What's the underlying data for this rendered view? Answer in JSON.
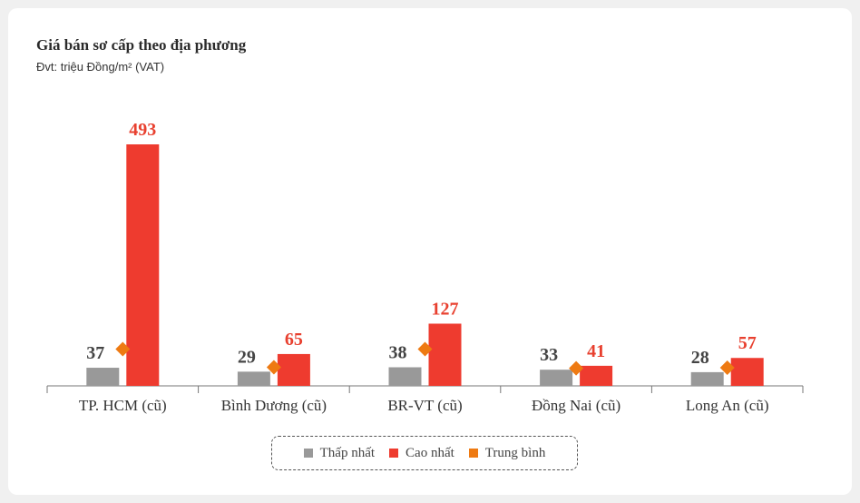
{
  "title": "Giá bán sơ cấp theo địa phương",
  "subtitle": "Đvt: triệu Đồng/m² (VAT)",
  "colors": {
    "low": "#999999",
    "high": "#ee3b2f",
    "avg": "#ee7a12",
    "label_low": "#444444",
    "label_high": "#e8402f"
  },
  "chart_data": {
    "type": "bar",
    "title": "Giá bán sơ cấp theo địa phương",
    "subtitle": "Đvt: triệu Đồng/m² (VAT)",
    "categories": [
      "TP. HCM (cũ)",
      "Bình Dương (cũ)",
      "BR-VT (cũ)",
      "Đồng Nai (cũ)",
      "Long An (cũ)"
    ],
    "series": [
      {
        "name": "Thấp nhất",
        "values": [
          37,
          29,
          38,
          33,
          28
        ]
      },
      {
        "name": "Cao nhất",
        "values": [
          493,
          65,
          127,
          41,
          57
        ]
      },
      {
        "name": "Trung bình",
        "type": "marker",
        "values": [
          75,
          38,
          75,
          36,
          37
        ]
      }
    ],
    "ylim": [
      0,
      493
    ],
    "grid": false,
    "legend_position": "bottom-center"
  }
}
